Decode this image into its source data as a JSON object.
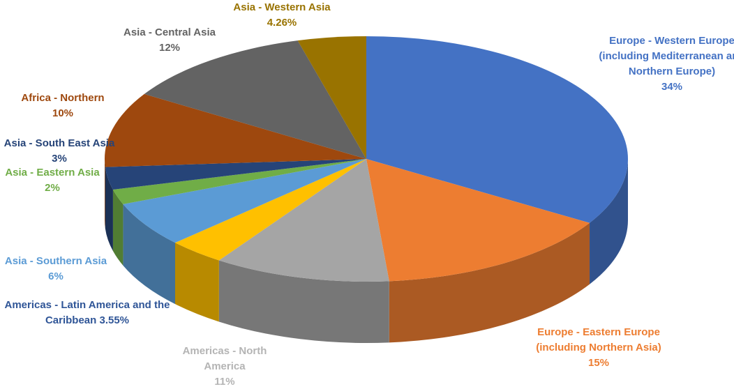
{
  "chart_data": {
    "type": "pie3d",
    "categories": [
      "Europe - Western Europe (including Mediterranean and Northern Europe)",
      "Europe - Eastern Europe (including Northern Asia)",
      "Americas - North America",
      "Americas - Latin America and the Caribbean",
      "Asia - Southern Asia",
      "Asia - Eastern Asia",
      "Asia - South East Asia",
      "Africa - Northern",
      "Asia - Central Asia",
      "Asia - Western Asia"
    ],
    "values": [
      34,
      15,
      11,
      3.55,
      6,
      2,
      3,
      10,
      12,
      4.26
    ],
    "value_labels": [
      "34%",
      "15%",
      "11%",
      "3.55%",
      "6%",
      "2%",
      "3%",
      "10%",
      "12%",
      "4.26%"
    ],
    "colors": [
      "#4472c4",
      "#ed7d31",
      "#a5a5a5",
      "#ffc000",
      "#5b9bd5",
      "#70ad47",
      "#264478",
      "#9e480e",
      "#636363",
      "#997300"
    ]
  }
}
